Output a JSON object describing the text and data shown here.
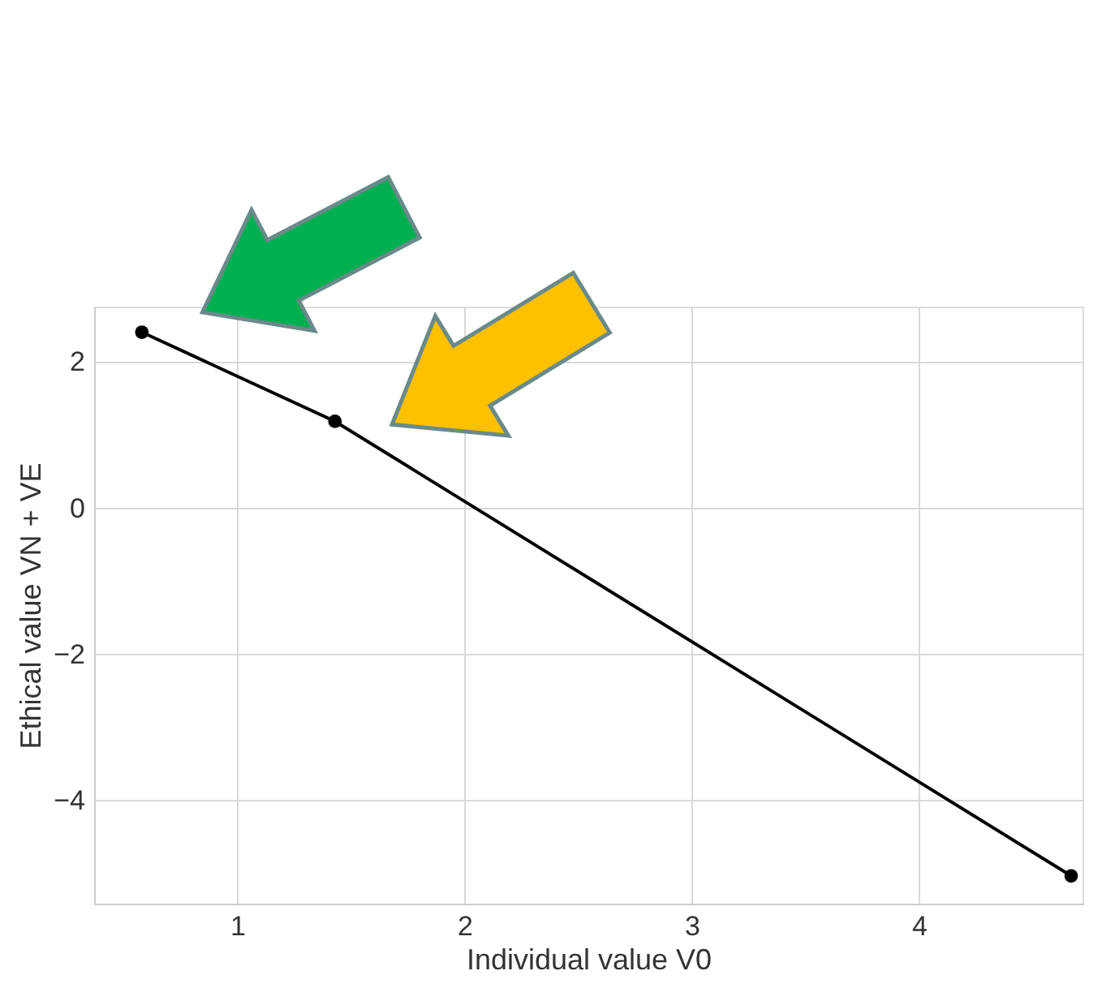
{
  "chart_data": {
    "type": "line",
    "xlabel": "Individual value V0",
    "ylabel": "Ethical value VN + VE",
    "x": [
      0.58,
      1.43,
      4.67
    ],
    "series": [
      {
        "color": "#000000",
        "values": [
          2.41,
          1.19,
          -5.03
        ]
      }
    ],
    "xlim": [
      0.37,
      4.72
    ],
    "ylim": [
      -5.41,
      2.76
    ],
    "xticks": [
      1,
      2,
      3,
      4
    ],
    "yticks": [
      {
        "value": -4,
        "label": "−4"
      },
      {
        "value": -2,
        "label": "−2"
      },
      0,
      2
    ],
    "grid": true,
    "marker": "circle",
    "line_style": "solid"
  }
}
